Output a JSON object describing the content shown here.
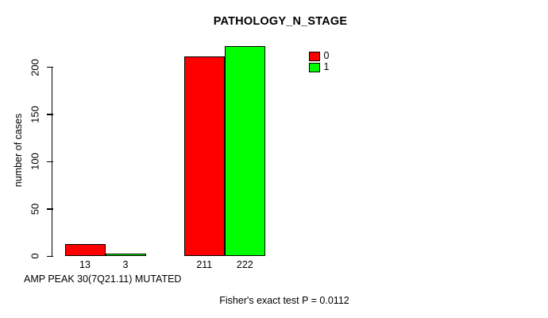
{
  "chart_data": {
    "type": "bar",
    "title": "PATHOLOGY_N_STAGE",
    "ylabel": "number of cases",
    "xlabel": "AMP PEAK 30(7Q21.11) MUTATED",
    "footnote": "Fisher's exact test P = 0.0112",
    "categories": [
      "",
      ""
    ],
    "series": [
      {
        "name": "0",
        "color": "#ff0000",
        "values": [
          13,
          211
        ]
      },
      {
        "name": "1",
        "color": "#00ff00",
        "values": [
          3,
          222
        ]
      }
    ],
    "bar_value_labels": [
      "13",
      "3",
      "211",
      "222"
    ],
    "yticks": [
      0,
      50,
      100,
      150,
      200
    ],
    "ylim": [
      0,
      225
    ],
    "grid": false,
    "legend_position": "top-right-of-plot",
    "bar_border_color": "#000000",
    "axis_color": "#000000",
    "background": "#ffffff"
  }
}
